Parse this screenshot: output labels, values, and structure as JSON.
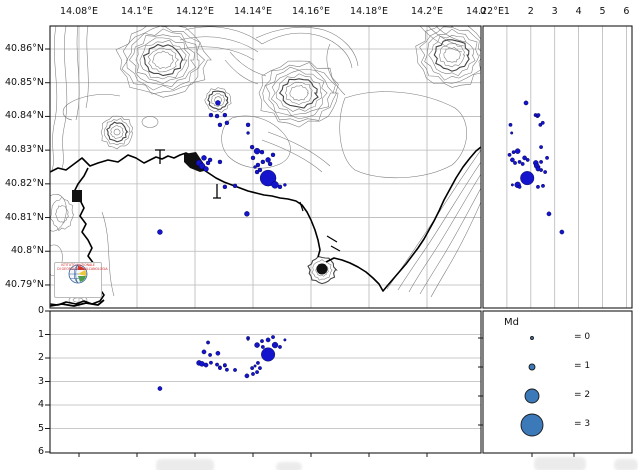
{
  "axes": {
    "lon_labels": [
      "14.08°E",
      "14.1°E",
      "14.12°E",
      "14.14°E",
      "14.16°E",
      "14.18°E",
      "14.2°E",
      "14.22°E"
    ],
    "lon_values": [
      14.08,
      14.1,
      14.12,
      14.14,
      14.16,
      14.18,
      14.2,
      14.22
    ],
    "lat_labels": [
      "40.86°N",
      "40.85°N",
      "40.84°N",
      "40.83°N",
      "40.82°N",
      "40.81°N",
      "40.8°N",
      "40.79°N"
    ],
    "lat_values": [
      40.86,
      40.85,
      40.84,
      40.83,
      40.82,
      40.81,
      40.8,
      40.79
    ],
    "depth_labels": [
      "0",
      "1",
      "2",
      "3",
      "4",
      "5",
      "6"
    ],
    "depth_values": [
      0,
      1,
      2,
      3,
      4,
      5,
      6
    ]
  },
  "legend": {
    "title": "Md",
    "entries": [
      {
        "label": "= 0",
        "md": 0,
        "size": 1.5
      },
      {
        "label": "= 1",
        "md": 1,
        "size": 3
      },
      {
        "label": "= 2",
        "md": 2,
        "size": 7
      },
      {
        "label": "= 3",
        "md": 3,
        "size": 11
      }
    ]
  },
  "logo": {
    "line1": "ISTITUTO NAZIONALE",
    "line2": "DI GEOFISICA E VULCANOLOGIA"
  },
  "colors": {
    "event_marker": "#1414cc",
    "event_edge": "#000044",
    "legend_marker": "#3b79b9",
    "grid": "#b8b8b8",
    "contour": "#7a7a7a",
    "coast": "#000000"
  },
  "chart_data": {
    "type": "scatter",
    "description_visible": "epicentral map with longitude/latitude axes, depth cross-section panels (depth in km on 0-6 axes) and Md size legend",
    "map_extent": {
      "lon_min": 14.07,
      "lon_max": 14.219,
      "lat_min": 40.783,
      "lat_max": 40.867
    },
    "depth_axis_range": [
      0,
      6
    ],
    "grid": true,
    "legend_title": "Md",
    "events": [
      {
        "lon": 14.1279,
        "lat": 40.844,
        "depth": 1.8,
        "md": 0.75,
        "r": 2.5
      },
      {
        "lon": 14.1255,
        "lat": 40.8404,
        "depth": 2.2,
        "md": 0.45,
        "r": 2
      },
      {
        "lon": 14.1276,
        "lat": 40.8401,
        "depth": 2.28,
        "md": 0.45,
        "r": 2
      },
      {
        "lon": 14.1303,
        "lat": 40.8404,
        "depth": 2.32,
        "md": 0.45,
        "r": 2
      },
      {
        "lon": 14.1286,
        "lat": 40.8375,
        "depth": 2.4,
        "md": 0.45,
        "r": 2
      },
      {
        "lon": 14.131,
        "lat": 40.8381,
        "depth": 2.5,
        "md": 0.45,
        "r": 2
      },
      {
        "lon": 14.1383,
        "lat": 40.8375,
        "depth": 1.15,
        "md": 0.45,
        "r": 2
      },
      {
        "lon": 14.1383,
        "lat": 40.8351,
        "depth": 1.2,
        "md": 0.2,
        "r": 1.5
      },
      {
        "lon": 14.1397,
        "lat": 40.8309,
        "depth": 2.43,
        "md": 0.45,
        "r": 2
      },
      {
        "lon": 14.1414,
        "lat": 40.8297,
        "depth": 1.45,
        "md": 1.0,
        "r": 3
      },
      {
        "lon": 14.1431,
        "lat": 40.8294,
        "depth": 1.28,
        "md": 0.45,
        "r": 2
      },
      {
        "lon": 14.1469,
        "lat": 40.8286,
        "depth": 1.11,
        "md": 0.45,
        "r": 2
      },
      {
        "lon": 14.1452,
        "lat": 40.8271,
        "depth": 1.23,
        "md": 0.75,
        "r": 2.5
      },
      {
        "lon": 14.1434,
        "lat": 40.8265,
        "depth": 1.53,
        "md": 0.45,
        "r": 2
      },
      {
        "lon": 14.1459,
        "lat": 40.8259,
        "depth": 1.66,
        "md": 0.45,
        "r": 2
      },
      {
        "lon": 14.1417,
        "lat": 40.8256,
        "depth": 2.21,
        "md": 0.45,
        "r": 2
      },
      {
        "lon": 14.1407,
        "lat": 40.825,
        "depth": 2.34,
        "md": 0.2,
        "r": 1.5
      },
      {
        "lon": 14.1424,
        "lat": 40.8241,
        "depth": 2.43,
        "md": 0.45,
        "r": 2
      },
      {
        "lon": 14.1414,
        "lat": 40.8235,
        "depth": 2.6,
        "md": 0.45,
        "r": 2
      },
      {
        "lon": 14.1231,
        "lat": 40.8277,
        "depth": 1.74,
        "md": 0.75,
        "r": 2.5
      },
      {
        "lon": 14.1214,
        "lat": 40.8262,
        "depth": 2.21,
        "md": 1.0,
        "r": 3
      },
      {
        "lon": 14.1224,
        "lat": 40.8253,
        "depth": 2.25,
        "md": 1.0,
        "r": 3
      },
      {
        "lon": 14.1238,
        "lat": 40.8244,
        "depth": 2.3,
        "md": 0.75,
        "r": 2.5
      },
      {
        "lon": 14.1252,
        "lat": 40.8271,
        "depth": 1.87,
        "md": 0.45,
        "r": 2
      },
      {
        "lon": 14.1286,
        "lat": 40.8265,
        "depth": 2.43,
        "md": 0.45,
        "r": 2
      },
      {
        "lon": 14.1245,
        "lat": 40.8262,
        "depth": 1.34,
        "md": 0.45,
        "r": 2
      },
      {
        "lon": 14.14,
        "lat": 40.8277,
        "depth": 2.68,
        "md": 0.45,
        "r": 2
      },
      {
        "lon": 14.1452,
        "lat": 40.8217,
        "depth": 1.85,
        "md": 2.3,
        "r": 8
      },
      {
        "lon": 14.1476,
        "lat": 40.8197,
        "depth": 1.45,
        "md": 1.15,
        "r": 3.5
      },
      {
        "lon": 14.1493,
        "lat": 40.8191,
        "depth": 1.53,
        "md": 0.45,
        "r": 2
      },
      {
        "lon": 14.151,
        "lat": 40.8197,
        "depth": 1.23,
        "md": 0.2,
        "r": 1.5
      },
      {
        "lon": 14.1338,
        "lat": 40.8194,
        "depth": 2.51,
        "md": 0.45,
        "r": 2
      },
      {
        "lon": 14.1303,
        "lat": 40.8191,
        "depth": 2.3,
        "md": 0.45,
        "r": 2
      },
      {
        "lon": 14.1079,
        "lat": 40.8057,
        "depth": 3.3,
        "md": 0.75,
        "r": 2.5
      },
      {
        "lon": 14.1379,
        "lat": 40.8111,
        "depth": 2.76,
        "md": 0.75,
        "r": 2.5
      }
    ]
  }
}
